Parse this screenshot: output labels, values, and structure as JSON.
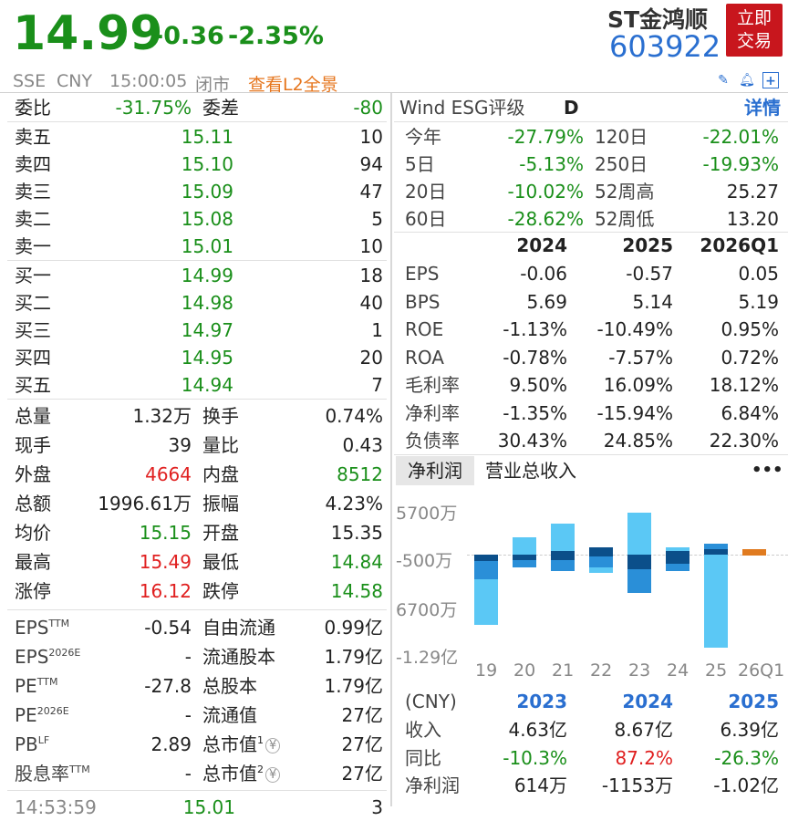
{
  "header": {
    "price": "14.99",
    "change": "-0.36",
    "change_pct": "-2.35%",
    "stock_name": "ST金鸿顺",
    "stock_code": "603922",
    "trade_button": [
      "立即",
      "交易"
    ],
    "exchange": "SSE",
    "currency": "CNY",
    "time": "15:00:05",
    "market_status": "闭市",
    "l2_link": "查看L2全景"
  },
  "order_book": {
    "ratio_label": "委比",
    "ratio_value": "-31.75%",
    "diff_label": "委差",
    "diff_value": "-80",
    "asks": [
      {
        "label": "卖五",
        "price": "15.11",
        "volume": "10"
      },
      {
        "label": "卖四",
        "price": "15.10",
        "volume": "94"
      },
      {
        "label": "卖三",
        "price": "15.09",
        "volume": "47"
      },
      {
        "label": "卖二",
        "price": "15.08",
        "volume": "5"
      },
      {
        "label": "卖一",
        "price": "15.01",
        "volume": "10"
      }
    ],
    "bids": [
      {
        "label": "买一",
        "price": "14.99",
        "volume": "18"
      },
      {
        "label": "买二",
        "price": "14.98",
        "volume": "40"
      },
      {
        "label": "买三",
        "price": "14.97",
        "volume": "1"
      },
      {
        "label": "买四",
        "price": "14.95",
        "volume": "20"
      },
      {
        "label": "买五",
        "price": "14.94",
        "volume": "7"
      }
    ]
  },
  "stats": [
    {
      "l1": "总量",
      "v1": "1.32万",
      "l2": "换手",
      "v2": "0.74%"
    },
    {
      "l1": "现手",
      "v1": "39",
      "l2": "量比",
      "v2": "0.43"
    },
    {
      "l1": "外盘",
      "v1": "4664",
      "l2": "内盘",
      "v2": "8512"
    },
    {
      "l1": "总额",
      "v1": "1996.61万",
      "l2": "振幅",
      "v2": "4.23%"
    },
    {
      "l1": "均价",
      "v1": "15.15",
      "l2": "开盘",
      "v2": "15.35"
    },
    {
      "l1": "最高",
      "v1": "15.49",
      "l2": "最低",
      "v2": "14.84"
    },
    {
      "l1": "涨停",
      "v1": "16.12",
      "l2": "跌停",
      "v2": "14.58"
    }
  ],
  "valuation": [
    {
      "l1": "EPS",
      "s1": "TTM",
      "v1": "-0.54",
      "l2": "自由流通",
      "v2": "0.99亿"
    },
    {
      "l1": "EPS",
      "s1": "2026E",
      "v1": "-",
      "l2": "流通股本",
      "v2": "1.79亿"
    },
    {
      "l1": "PE",
      "s1": "TTM",
      "v1": "-27.8",
      "l2": "总股本",
      "v2": "1.79亿"
    },
    {
      "l1": "PE",
      "s1": "2026E",
      "v1": "-",
      "l2": "流通值",
      "v2": "27亿"
    },
    {
      "l1": "PB",
      "s1": "LF",
      "v1": "2.89",
      "l2": "总市值",
      "s2": "1",
      "v2": "27亿"
    },
    {
      "l1": "股息率",
      "s1": "TTM",
      "v1": "-",
      "l2": "总市值",
      "s2": "2",
      "v2": "27亿"
    }
  ],
  "tick": {
    "time": "14:53:59",
    "price": "15.01",
    "volume": "3"
  },
  "esg": {
    "label": "Wind ESG评级",
    "rating": "D",
    "detail_link": "详情"
  },
  "performance": [
    {
      "l1": "今年",
      "v1": "-27.79%",
      "l2": "120日",
      "v2": "-22.01%"
    },
    {
      "l1": "5日",
      "v1": "-5.13%",
      "l2": "250日",
      "v2": "-19.93%"
    },
    {
      "l1": "20日",
      "v1": "-10.02%",
      "l2": "52周高",
      "v2": "25.27"
    },
    {
      "l1": "60日",
      "v1": "-28.62%",
      "l2": "52周低",
      "v2": "13.20"
    }
  ],
  "fin_table": {
    "years": [
      "2024",
      "2025",
      "2026Q1"
    ],
    "rows": [
      {
        "label": "EPS",
        "values": [
          "-0.06",
          "-0.57",
          "0.05"
        ]
      },
      {
        "label": "BPS",
        "values": [
          "5.69",
          "5.14",
          "5.19"
        ]
      },
      {
        "label": "ROE",
        "values": [
          "-1.13%",
          "-10.49%",
          "0.95%"
        ]
      },
      {
        "label": "ROA",
        "values": [
          "-0.78%",
          "-7.57%",
          "0.72%"
        ]
      },
      {
        "label": "毛利率",
        "values": [
          "9.50%",
          "16.09%",
          "18.12%"
        ]
      },
      {
        "label": "净利率",
        "values": [
          "-1.35%",
          "-15.94%",
          "6.84%"
        ]
      },
      {
        "label": "负债率",
        "values": [
          "30.43%",
          "24.85%",
          "22.30%"
        ]
      }
    ]
  },
  "chart_tabs": {
    "active": "净利润",
    "other": "营业总收入",
    "more": "•••"
  },
  "chart_data": {
    "type": "bar",
    "categories": [
      "19",
      "20",
      "21",
      "22",
      "23",
      "24",
      "25",
      "26Q1"
    ],
    "ytick_labels": [
      "5700万",
      "-500万",
      "6700万",
      "-1.29亿"
    ],
    "colors": {
      "light": "#5bc8f5",
      "mid": "#2a8fd8",
      "dark": "#0b4f8a",
      "accent": "#e07b20"
    }
  },
  "annual": {
    "unit": "(CNY)",
    "years": [
      "2023",
      "2024",
      "2025"
    ],
    "rows": [
      {
        "label": "收入",
        "values": [
          "4.63亿",
          "8.67亿",
          "6.39亿"
        ]
      },
      {
        "label": "同比",
        "values": [
          "-10.3%",
          "87.2%",
          "-26.3%"
        ]
      },
      {
        "label": "净利润",
        "values": [
          "614万",
          "-1153万",
          "-1.02亿"
        ]
      }
    ]
  }
}
